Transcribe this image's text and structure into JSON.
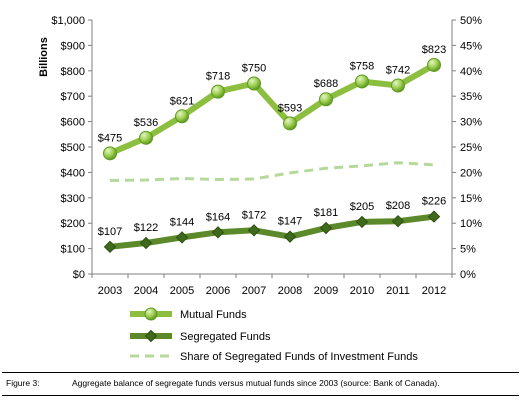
{
  "chart_data": {
    "type": "line",
    "categories": [
      "2003",
      "2004",
      "2005",
      "2006",
      "2007",
      "2008",
      "2009",
      "2010",
      "2011",
      "2012"
    ],
    "ylabel": "Billions",
    "ylim": [
      0,
      1000
    ],
    "y_ticks": [
      "$0",
      "$100",
      "$200",
      "$300",
      "$400",
      "$500",
      "$600",
      "$700",
      "$800",
      "$900",
      "$1,000"
    ],
    "y2lim": [
      0,
      50
    ],
    "y2_ticks": [
      "0%",
      "5%",
      "10%",
      "15%",
      "20%",
      "25%",
      "30%",
      "35%",
      "40%",
      "45%",
      "50%"
    ],
    "legend_position": "bottom",
    "grid": false,
    "series": [
      {
        "name": "Mutual Funds",
        "axis": "left",
        "marker": "circle",
        "color": "#8cbf3f",
        "values": [
          475,
          536,
          621,
          718,
          750,
          593,
          688,
          758,
          742,
          823
        ],
        "labels": [
          "$475",
          "$536",
          "$621",
          "$718",
          "$750",
          "$593",
          "$688",
          "$758",
          "$742",
          "$823"
        ]
      },
      {
        "name": "Segregated Funds",
        "axis": "left",
        "marker": "diamond",
        "color": "#5c8a2a",
        "values": [
          107,
          122,
          144,
          164,
          172,
          147,
          181,
          205,
          208,
          226
        ],
        "labels": [
          "$107",
          "$122",
          "$144",
          "$164",
          "$172",
          "$147",
          "$181",
          "$205",
          "$208",
          "$226"
        ]
      },
      {
        "name": "Share of Segregated Funds of Investment Funds",
        "axis": "right",
        "marker": "none",
        "dashed": true,
        "color": "#b5d99a",
        "values": [
          18.4,
          18.5,
          18.8,
          18.6,
          18.7,
          19.9,
          20.8,
          21.3,
          21.9,
          21.5
        ]
      }
    ]
  },
  "caption": {
    "figure": "Figure 3:",
    "text": "Aggregate balance of segregate funds versus mutual funds since 2003 (source: Bank of Canada)."
  }
}
